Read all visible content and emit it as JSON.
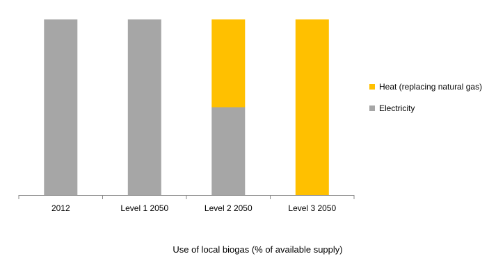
{
  "chart_data": {
    "type": "bar",
    "stacked": true,
    "categories": [
      "2012",
      "Level 1 2050",
      "Level 2 2050",
      "Level 3 2050"
    ],
    "series": [
      {
        "name": "Electricity",
        "values": [
          100,
          100,
          50,
          0
        ],
        "color": "#a6a6a6"
      },
      {
        "name": "Heat (replacing natural gas)",
        "values": [
          0,
          0,
          50,
          100
        ],
        "color": "#ffc000"
      }
    ],
    "xlabel": "Use of local biogas (% of available supply)",
    "ylabel": "",
    "ylim": [
      0,
      100
    ],
    "grid": false,
    "legend_position": "right"
  }
}
